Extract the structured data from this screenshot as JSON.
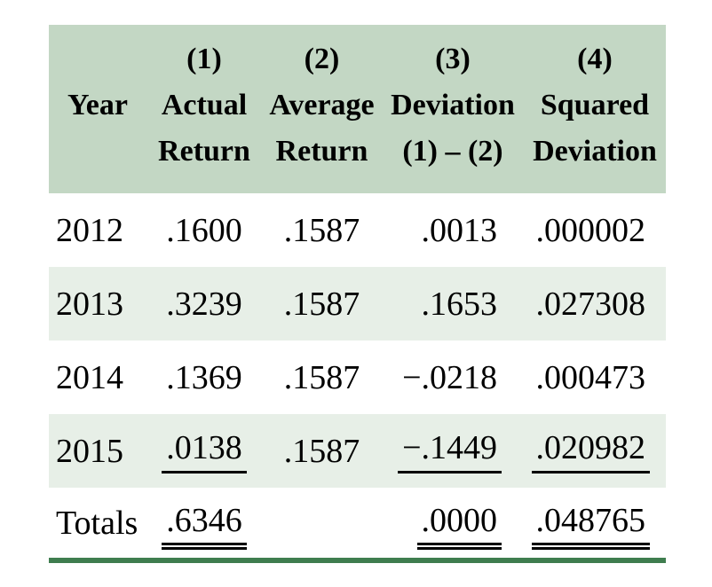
{
  "colors": {
    "header_bg": "#c3d7c4",
    "stripe_bg": "#e7efe7",
    "rule_green": "#3f7d4f",
    "text": "#000000",
    "page_bg": "#ffffff"
  },
  "table": {
    "columns": [
      {
        "num": "",
        "line1": "Year",
        "line2": ""
      },
      {
        "num": "(1)",
        "line1": "Actual",
        "line2": "Return"
      },
      {
        "num": "(2)",
        "line1": "Average",
        "line2": "Return"
      },
      {
        "num": "(3)",
        "line1": "Deviation",
        "line2": "(1) – (2)"
      },
      {
        "num": "(4)",
        "line1": "Squared",
        "line2": "Deviation"
      }
    ],
    "rows": [
      {
        "year": "2012",
        "actual": ".1600",
        "average": ".1587",
        "deviation": ".0013",
        "squared": ".000002"
      },
      {
        "year": "2013",
        "actual": ".3239",
        "average": ".1587",
        "deviation": ".1653",
        "squared": ".027308"
      },
      {
        "year": "2014",
        "actual": ".1369",
        "average": ".1587",
        "deviation": "−.0218",
        "squared": ".000473"
      },
      {
        "year": "2015",
        "actual": ".0138",
        "average": ".1587",
        "deviation": "−.1449",
        "squared": ".020982"
      },
      {
        "year": "Totals",
        "actual": ".6346",
        "average": "",
        "deviation": ".0000",
        "squared": ".048765"
      }
    ]
  }
}
